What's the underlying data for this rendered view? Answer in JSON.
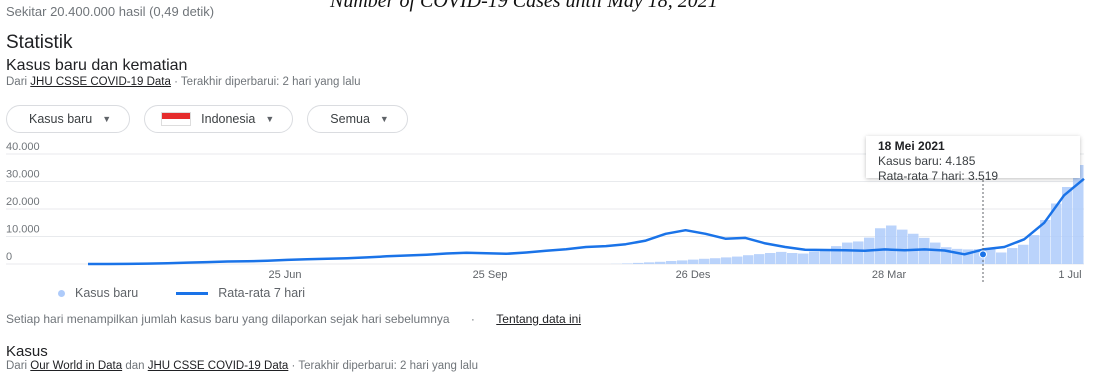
{
  "top_cut_text": "Number of COVID-19 Cases until May 18, 2021",
  "result_stats": "Sekitar 20.400.000 hasil (0,49 detik)",
  "section_title": "Statistik",
  "chart_section": {
    "title": "Kasus baru dan kematian",
    "source_prefix": "Dari",
    "source_link": "JHU CSSE COVID-19 Data",
    "source_suffix": "· Terakhir diperbarui: 2 hari yang lalu"
  },
  "filters": {
    "metric": "Kasus baru",
    "country": "Indonesia",
    "range": "Semua"
  },
  "tooltip": {
    "date": "18 Mei 2021",
    "new_cases": "Kasus baru: 4.185",
    "avg": "Rata-rata 7 hari: 3.519"
  },
  "legend": {
    "bars": "Kasus baru",
    "line": "Rata-rata 7 hari"
  },
  "note": {
    "text": "Setiap hari menampilkan jumlah kasus baru yang dilaporkan sejak hari sebelumnya",
    "separator": "·",
    "link": "Tentang data ini"
  },
  "kasus_section": {
    "title": "Kasus",
    "source_prefix": "Dari",
    "link1": "Our World in Data",
    "middle": "dan",
    "link2": "JHU CSSE COVID-19 Data",
    "suffix": "· Terakhir diperbarui: 2 hari yang lalu"
  },
  "colors": {
    "line": "#1a73e8",
    "bars": "#aecbfa",
    "grid": "#e8eaed"
  },
  "chart_data": {
    "type": "line",
    "x_ticks": [
      "25 Jun",
      "25 Sep",
      "26 Des",
      "28 Mar",
      "1 Jul"
    ],
    "y_ticks": [
      "0",
      "10.000",
      "20.000",
      "30.000",
      "40.000"
    ],
    "ylim": [
      0,
      40000
    ],
    "series": [
      {
        "name": "Rata-rata 7 hari",
        "x_index": [
          0,
          10,
          20,
          30,
          40,
          50,
          60,
          70,
          80,
          90,
          100,
          110,
          120,
          130,
          140,
          150,
          160,
          170,
          180,
          190,
          200,
          210,
          220,
          230,
          240,
          250,
          260,
          270,
          280,
          290,
          300,
          310,
          320,
          330,
          340,
          350,
          360,
          370,
          380,
          390,
          400,
          410,
          420,
          430,
          440,
          450,
          460,
          470,
          480,
          490,
          500
        ],
        "values": [
          0,
          10,
          50,
          150,
          300,
          500,
          700,
          900,
          1000,
          1200,
          1500,
          1700,
          1900,
          2100,
          2400,
          2800,
          3100,
          3400,
          3800,
          4100,
          3900,
          3700,
          4200,
          4800,
          5400,
          6200,
          6500,
          7200,
          8500,
          11000,
          12300,
          11000,
          9200,
          9500,
          7500,
          6200,
          5200,
          5100,
          5000,
          4800,
          5300,
          5000,
          5300,
          4900,
          3519,
          5400,
          6200,
          9000,
          15000,
          25000,
          31000
        ]
      }
    ],
    "bars_series": {
      "name": "Kasus baru",
      "values": [
        0,
        50,
        200,
        400,
        600,
        800,
        1100,
        1300,
        1600,
        1900,
        2100,
        2400,
        2700,
        3200,
        3600,
        4000,
        4400,
        4000,
        3800,
        4500,
        5200,
        6500,
        7800,
        8200,
        9600,
        13000,
        14000,
        12500,
        11000,
        9500,
        7800,
        6100,
        5500,
        5300,
        5400,
        5600,
        4185,
        5800,
        7000,
        10500,
        16000,
        22000,
        28000,
        36000
      ]
    },
    "highlight": {
      "label": "18 Mei 2021",
      "new_cases": 4185,
      "avg": 3519
    }
  }
}
